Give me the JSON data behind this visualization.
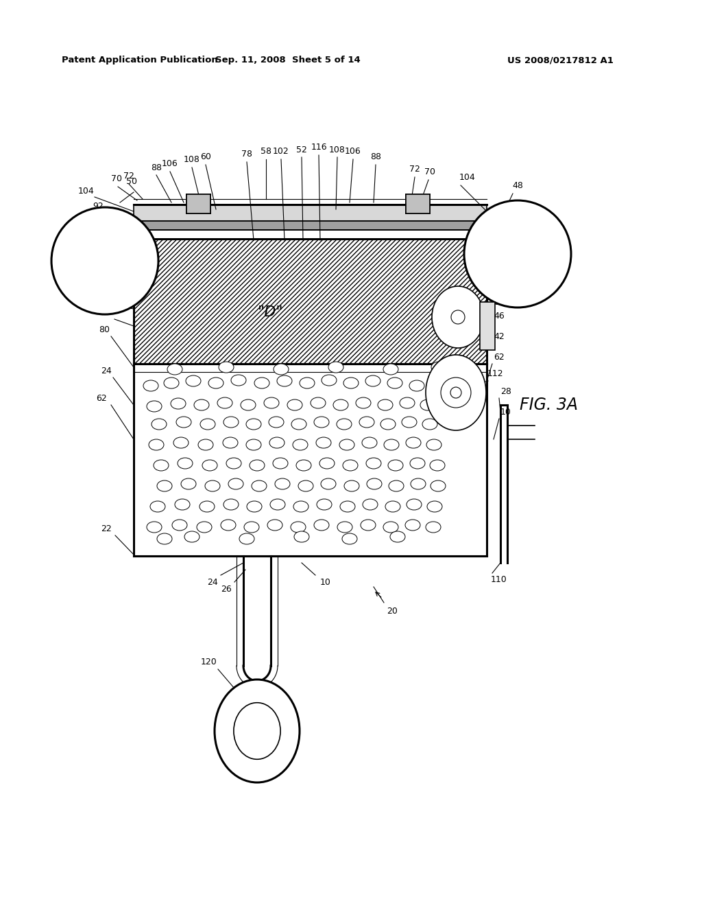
{
  "bg_color": "#ffffff",
  "header_left": "Patent Application Publication",
  "header_mid": "Sep. 11, 2008  Sheet 5 of 14",
  "header_right": "US 2008/0217812 A1",
  "fig_label": "FIG. 3A",
  "label_D": "\"D\""
}
